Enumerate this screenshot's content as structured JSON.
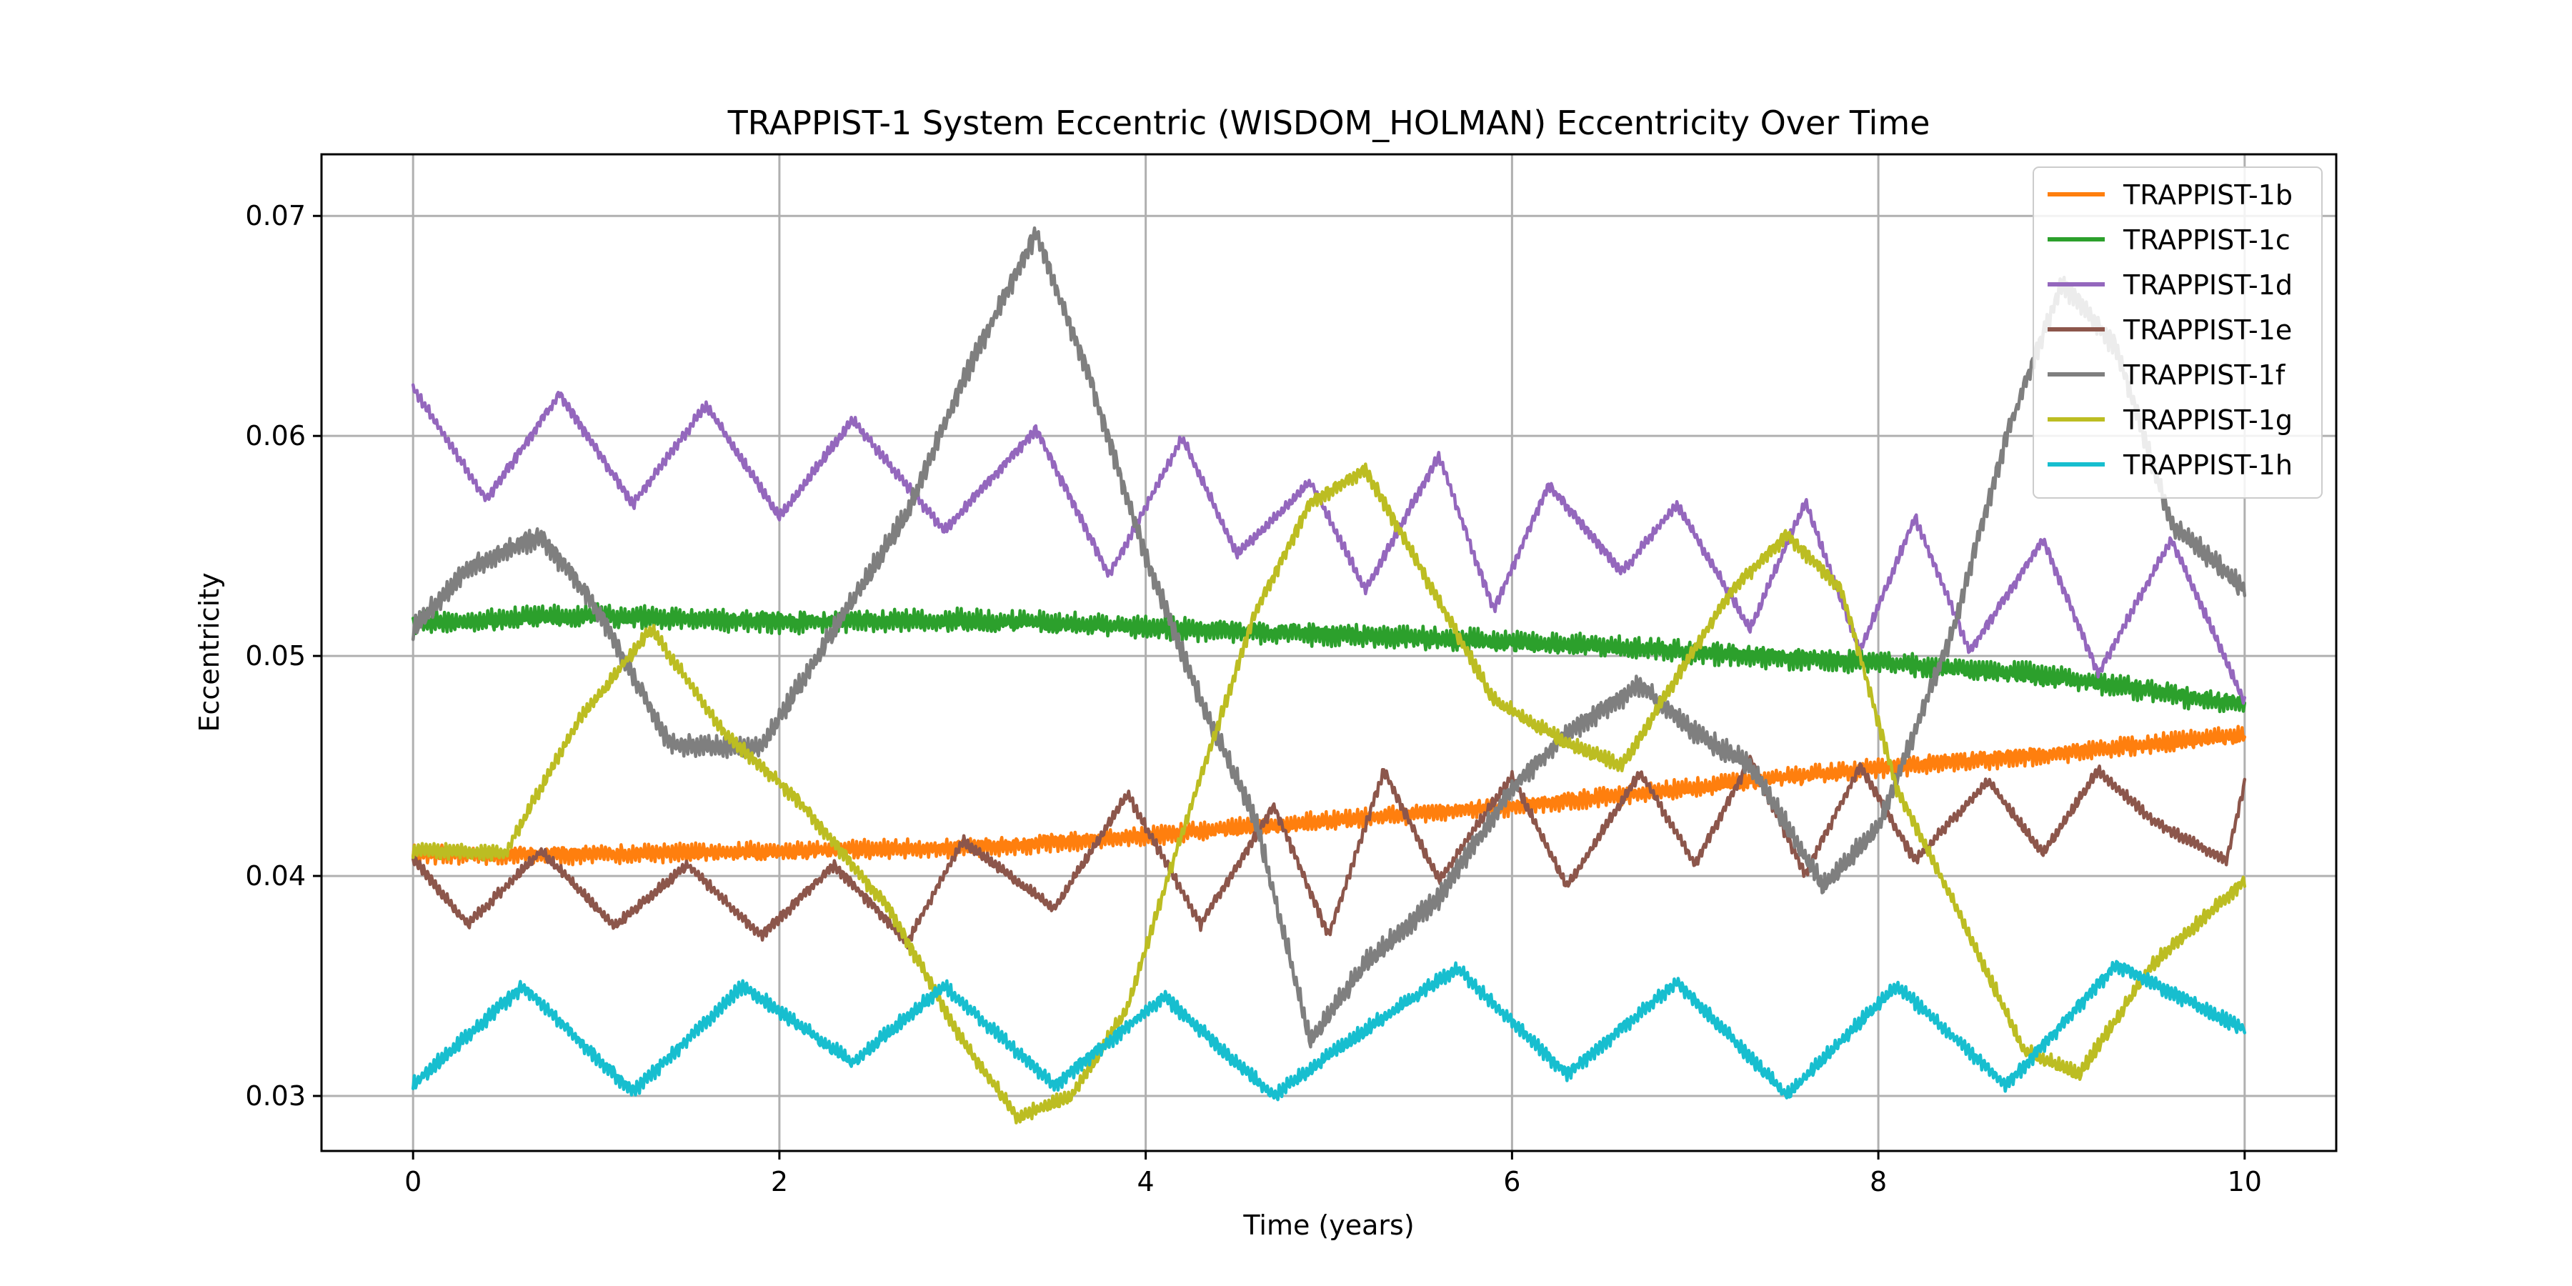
{
  "chart_data": {
    "type": "line",
    "title": "TRAPPIST-1 System Eccentric (WISDOM_HOLMAN) Eccentricity Over Time",
    "xlabel": "Time (years)",
    "ylabel": "Eccentricity",
    "xlim": [
      -0.5,
      10.5
    ],
    "ylim": [
      0.0275,
      0.0728
    ],
    "xticks": [
      0,
      2,
      4,
      6,
      8,
      10
    ],
    "xtick_labels": [
      "0",
      "2",
      "4",
      "6",
      "8",
      "10"
    ],
    "yticks": [
      0.03,
      0.04,
      0.05,
      0.06,
      0.07
    ],
    "ytick_labels": [
      "0.03",
      "0.04",
      "0.05",
      "0.06",
      "0.07"
    ],
    "grid": true,
    "legend_position": "top-right",
    "series": [
      {
        "name": "TRAPPIST-1b",
        "color": "#ff7f0e",
        "jitter": 0.0005,
        "x": [
          0,
          1,
          2,
          3,
          4,
          5,
          6,
          7,
          8,
          9,
          10
        ],
        "y": [
          0.041,
          0.041,
          0.0411,
          0.0413,
          0.0418,
          0.0425,
          0.0432,
          0.044,
          0.0449,
          0.0456,
          0.0464
        ]
      },
      {
        "name": "TRAPPIST-1c",
        "color": "#2ca02c",
        "jitter": 0.0006,
        "x": [
          0,
          1,
          2,
          3,
          4,
          5,
          6,
          7,
          8,
          9,
          10
        ],
        "y": [
          0.0515,
          0.0518,
          0.0516,
          0.0516,
          0.0513,
          0.051,
          0.0506,
          0.0502,
          0.0497,
          0.049,
          0.0478
        ]
      },
      {
        "name": "TRAPPIST-1d",
        "color": "#9467bd",
        "jitter": 0.0003,
        "x": [
          0,
          0.4,
          0.8,
          1.2,
          1.6,
          2.0,
          2.4,
          2.9,
          3.4,
          3.8,
          4.2,
          4.5,
          4.9,
          5.2,
          5.6,
          5.9,
          6.2,
          6.6,
          6.9,
          7.3,
          7.6,
          7.9,
          8.2,
          8.5,
          8.9,
          9.2,
          9.6,
          10.0
        ],
        "y": [
          0.0622,
          0.0571,
          0.0619,
          0.0569,
          0.0614,
          0.0563,
          0.0607,
          0.0557,
          0.0603,
          0.0537,
          0.0599,
          0.0546,
          0.0579,
          0.053,
          0.0591,
          0.0521,
          0.0578,
          0.0538,
          0.0569,
          0.0512,
          0.057,
          0.0502,
          0.0563,
          0.0502,
          0.0553,
          0.0492,
          0.0553,
          0.0479
        ]
      },
      {
        "name": "TRAPPIST-1e",
        "color": "#8c564b",
        "jitter": 0.0003,
        "x": [
          0,
          0.3,
          0.7,
          1.1,
          1.5,
          1.9,
          2.3,
          2.7,
          3.0,
          3.5,
          3.9,
          4.3,
          4.7,
          5.0,
          5.3,
          5.6,
          6.0,
          6.3,
          6.7,
          7.0,
          7.3,
          7.6,
          7.9,
          8.2,
          8.6,
          8.9,
          9.2,
          9.5,
          9.9,
          10.0
        ],
        "y": [
          0.0408,
          0.0378,
          0.0411,
          0.0377,
          0.0405,
          0.0373,
          0.0405,
          0.037,
          0.0416,
          0.0385,
          0.0437,
          0.0378,
          0.0432,
          0.0373,
          0.0448,
          0.0398,
          0.0445,
          0.0395,
          0.0447,
          0.0405,
          0.0453,
          0.0401,
          0.045,
          0.0407,
          0.0443,
          0.041,
          0.0448,
          0.0425,
          0.0407,
          0.0442
        ]
      },
      {
        "name": "TRAPPIST-1f",
        "color": "#7f7f7f",
        "jitter": 0.0006,
        "x": [
          0,
          0.3,
          0.7,
          1.0,
          1.4,
          1.9,
          2.3,
          2.7,
          3.0,
          3.4,
          3.7,
          4.0,
          4.3,
          4.6,
          4.9,
          5.2,
          5.6,
          6.0,
          6.3,
          6.7,
          7.0,
          7.3,
          7.7,
          8.0,
          8.4,
          8.7,
          9.0,
          9.3,
          9.6,
          10.0
        ],
        "y": [
          0.0512,
          0.054,
          0.0555,
          0.0522,
          0.046,
          0.0458,
          0.0512,
          0.0565,
          0.0625,
          0.0692,
          0.0625,
          0.0545,
          0.048,
          0.0425,
          0.0325,
          0.036,
          0.039,
          0.044,
          0.0465,
          0.0487,
          0.0465,
          0.045,
          0.0395,
          0.0422,
          0.051,
          0.06,
          0.067,
          0.064,
          0.056,
          0.053
        ]
      },
      {
        "name": "TRAPPIST-1g",
        "color": "#bcbd22",
        "jitter": 0.0004,
        "x": [
          0,
          0.5,
          0.9,
          1.3,
          1.7,
          2.1,
          2.6,
          3.0,
          3.3,
          3.6,
          3.9,
          4.2,
          4.6,
          4.9,
          5.2,
          5.5,
          5.9,
          6.3,
          6.6,
          6.9,
          7.2,
          7.5,
          7.8,
          8.1,
          8.4,
          8.8,
          9.1,
          9.5,
          10.0
        ],
        "y": [
          0.0412,
          0.041,
          0.047,
          0.0512,
          0.0465,
          0.0435,
          0.0385,
          0.0325,
          0.029,
          0.03,
          0.034,
          0.042,
          0.052,
          0.057,
          0.0585,
          0.054,
          0.048,
          0.046,
          0.045,
          0.049,
          0.053,
          0.0555,
          0.053,
          0.044,
          0.039,
          0.032,
          0.031,
          0.036,
          0.0398
        ]
      },
      {
        "name": "TRAPPIST-1h",
        "color": "#17becf",
        "jitter": 0.0004,
        "x": [
          0,
          0.6,
          1.2,
          1.8,
          2.4,
          2.9,
          3.5,
          4.1,
          4.7,
          5.2,
          5.7,
          6.3,
          6.9,
          7.5,
          8.1,
          8.7,
          9.3,
          10.0
        ],
        "y": [
          0.0305,
          0.035,
          0.0302,
          0.035,
          0.0315,
          0.035,
          0.0305,
          0.0345,
          0.03,
          0.033,
          0.0358,
          0.031,
          0.0352,
          0.03,
          0.035,
          0.0305,
          0.036,
          0.033
        ]
      }
    ]
  }
}
